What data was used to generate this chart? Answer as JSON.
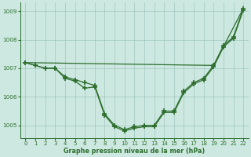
{
  "x": [
    0,
    1,
    2,
    3,
    4,
    5,
    6,
    7,
    8,
    9,
    10,
    11,
    12,
    13,
    14,
    15,
    16,
    17,
    18,
    19,
    20,
    21,
    22
  ],
  "line1": [
    1007.2,
    1007.1,
    1007.0,
    1007.0,
    1006.65,
    1006.55,
    1006.3,
    1006.35,
    1005.35,
    1004.95,
    1004.8,
    1004.9,
    1004.95,
    1004.95,
    1005.45,
    1005.45,
    1006.15,
    1006.45,
    1006.6,
    1007.05,
    1007.75,
    1008.05,
    1009.05
  ],
  "line2": [
    1007.2,
    1007.1,
    1007.0,
    1007.0,
    1006.7,
    1006.6,
    1006.5,
    1006.4,
    1005.4,
    1005.0,
    1004.85,
    1004.95,
    1005.0,
    1005.0,
    1005.5,
    1005.5,
    1006.2,
    1006.5,
    1006.65,
    1007.1,
    1007.8,
    1008.1,
    1009.1
  ],
  "line3_x": [
    0,
    19,
    22
  ],
  "line3_y": [
    1007.2,
    1007.1,
    1009.1
  ],
  "ylim": [
    1004.55,
    1009.3
  ],
  "yticks": [
    1005,
    1006,
    1007,
    1008,
    1009
  ],
  "xticks": [
    0,
    1,
    2,
    3,
    4,
    5,
    6,
    7,
    8,
    9,
    10,
    11,
    12,
    13,
    14,
    15,
    16,
    17,
    18,
    19,
    20,
    21,
    22
  ],
  "xlabel": "Graphe pression niveau de la mer (hPa)",
  "line_color": "#2d6e2d",
  "bg_color": "#cce8e0",
  "grid_color": "#a0c8be",
  "marker": "+",
  "linewidth": 0.9,
  "markersize": 4,
  "markeredgewidth": 1.2
}
